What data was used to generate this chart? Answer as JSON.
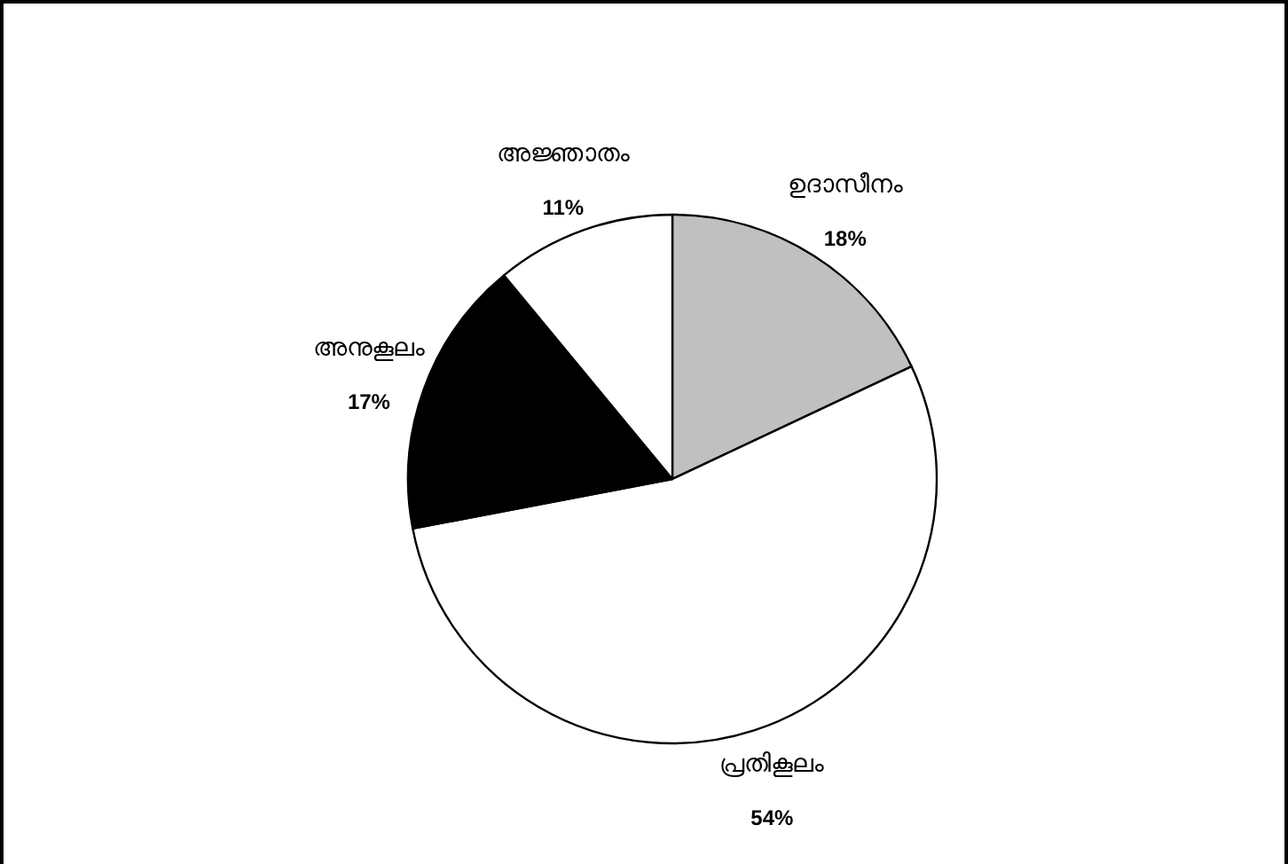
{
  "chart_data": {
    "type": "pie",
    "categories": [
      "ഉദാസീനം",
      "പ്രതികൂലം",
      "അനുകൂലം",
      "അജ്ഞാതം"
    ],
    "values": [
      18,
      54,
      17,
      11
    ],
    "colors": [
      "#c0c0c0",
      "#ffffff",
      "#000000",
      "#ffffff"
    ],
    "value_labels": [
      "18%",
      "54%",
      "17%",
      "11%"
    ]
  }
}
